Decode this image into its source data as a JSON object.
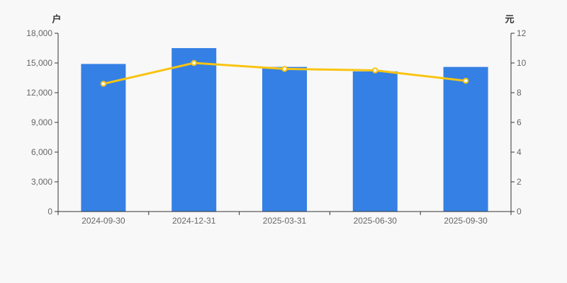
{
  "page": {
    "background": "#f8f8f8"
  },
  "chart_data": {
    "type": "bar",
    "subtype": "bar-plus-line-dual-axis",
    "categories": [
      "2024-09-30",
      "2024-12-31",
      "2025-03-31",
      "2025-06-30",
      "2025-09-30"
    ],
    "series": [
      {
        "name": "bar-series-left-axis",
        "type": "bar",
        "axis": "left",
        "color": "#3580e4",
        "values": [
          14900,
          16500,
          14600,
          14150,
          14600
        ]
      },
      {
        "name": "line-series-right-axis",
        "type": "line",
        "axis": "right",
        "color": "#f9c410",
        "marker_fill": "#ffffff",
        "values": [
          8.6,
          10.0,
          9.6,
          9.5,
          8.8
        ]
      }
    ],
    "left_axis": {
      "name": "户",
      "range": [
        0,
        18000
      ],
      "tick_labels": [
        "0",
        "3,000",
        "6,000",
        "9,000",
        "12,000",
        "15,000",
        "18,000"
      ]
    },
    "right_axis": {
      "name": "元",
      "range": [
        0,
        12
      ],
      "tick_labels": [
        "0",
        "2",
        "4",
        "6",
        "8",
        "10",
        "12"
      ]
    },
    "grid": false,
    "legend": false,
    "title": "",
    "axis_color": "#333333",
    "tick_label_color": "#666666"
  }
}
